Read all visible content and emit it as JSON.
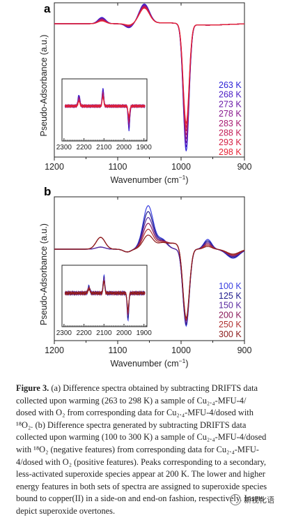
{
  "chart_data": [
    {
      "type": "line",
      "panel_label": "a",
      "xlabel": "Wavenumber (cm",
      "xlabel_sup": "−1",
      "xlabel_end": ")",
      "ylabel": "Pseudo-Adsorbance (a.u.)",
      "xlim": [
        1200,
        900
      ],
      "xticks": [
        "1200",
        "1100",
        "1000",
        "900"
      ],
      "xtick_values": [
        1200,
        1100,
        1000,
        900
      ],
      "legend": [
        "263 K",
        "268 K",
        "273 K",
        "278 K",
        "283 K",
        "288 K",
        "293 K",
        "298 K"
      ],
      "colors": [
        "#2a1fd6",
        "#4a1cc4",
        "#6a1aa8",
        "#8a1a8e",
        "#a81c72",
        "#c21e56",
        "#d41f42",
        "#e52234"
      ],
      "inset": {
        "xticks": [
          "2300",
          "2200",
          "2100",
          "2000",
          "1900"
        ],
        "xtick_values": [
          2300,
          2200,
          2100,
          2000,
          1900
        ],
        "xlim": [
          2310,
          1885
        ]
      }
    },
    {
      "type": "line",
      "panel_label": "b",
      "xlabel": "Wavenumber (cm",
      "xlabel_sup": "−1",
      "xlabel_end": ")",
      "ylabel": "Pseudo-Adsorbance (a.u.)",
      "xlim": [
        1200,
        900
      ],
      "xticks": [
        "1200",
        "1100",
        "1000",
        "900"
      ],
      "xtick_values": [
        1200,
        1100,
        1000,
        900
      ],
      "legend": [
        "100 K",
        "125 K",
        "150 K",
        "200 K",
        "250 K",
        "300 K"
      ],
      "colors": [
        "#3a3fe0",
        "#1e1a8c",
        "#5a2aa0",
        "#8a1a5a",
        "#b03030",
        "#8b1a1a"
      ],
      "inset": {
        "xticks": [
          "2300",
          "2200",
          "2100",
          "2000",
          "1900"
        ],
        "xtick_values": [
          2300,
          2200,
          2100,
          2000,
          1900
        ],
        "xlim": [
          2310,
          1885
        ]
      }
    }
  ],
  "caption": {
    "lead": "Figure 3.",
    "text": " (a) Difference spectra obtained by subtracting DRIFTS data collected upon warming (263 to 298 K) a sample of Cu₂.₄-MFU-4/ dosed with O₂ from corresponding data for Cu₂.₄-MFU-4/dosed with ¹⁸O₂. (b) Difference spectra generated by subtracting DRIFTS data collected upon warming (100 to 300 K) a sample of Cu₂.₄-MFU-4/dosed with ¹⁸O₂ (negative features) from corresponding data for Cu₂.₄-MFU-4/dosed with O₂ (positive features). Peaks corresponding to a secondary, less-activated superoxide species appear at 200 K. The lower and higher energy features in both sets of spectra are assigned to superoxide species bound to copper(II) in a side-on and end-on fashion, respectively. Insets depict superoxide overtones."
  },
  "watermark": "新视化语"
}
